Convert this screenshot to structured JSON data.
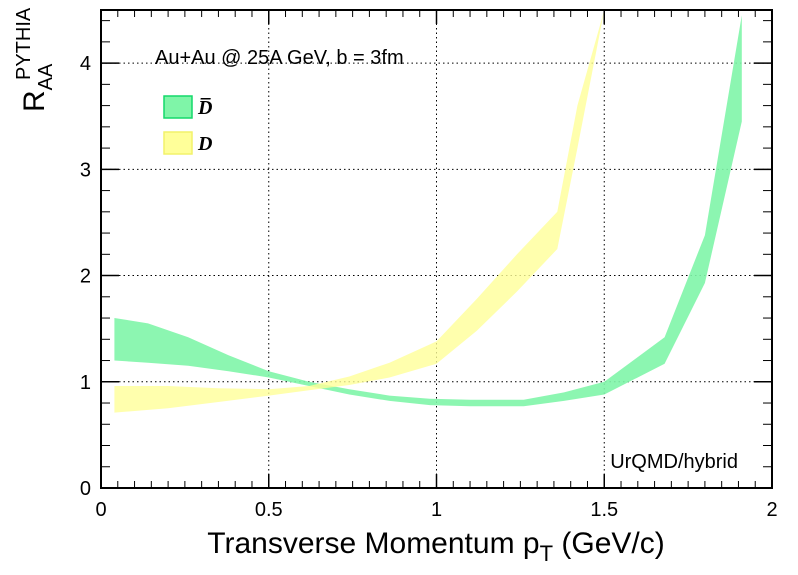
{
  "chart_data": {
    "type": "area",
    "title": "",
    "xlabel": "Transverse Momentum p",
    "xlabel_sub": "T",
    "xlabel_suffix": " (GeV/c)",
    "ylabel": "R",
    "ylabel_sub": "AA",
    "ylabel_sup": "PYTHIA",
    "xlim": [
      0,
      2
    ],
    "ylim": [
      0,
      4.5
    ],
    "x_ticks": [
      0,
      0.5,
      1,
      1.5,
      2
    ],
    "x_tick_labels": [
      "0",
      "0.5",
      "1",
      "1.5",
      "2"
    ],
    "y_ticks": [
      0,
      1,
      2,
      3,
      4
    ],
    "y_tick_labels": [
      "0",
      "1",
      "2",
      "3",
      "4"
    ],
    "grid": true,
    "legend_position": "top-left",
    "annotations": {
      "system": "Au+Au @ 25A GeV, b = 3fm",
      "model": "UrQMD/hybrid"
    },
    "series": [
      {
        "name": "D̅",
        "color_fill": "#7ff5a8",
        "color_edge": "#14d96a",
        "x": [
          0.04,
          0.14,
          0.26,
          0.38,
          0.5,
          0.62,
          0.74,
          0.86,
          0.98,
          1.1,
          1.26,
          1.38,
          1.5,
          1.68,
          1.8,
          1.91
        ],
        "lower": [
          1.2,
          1.18,
          1.15,
          1.1,
          1.04,
          0.96,
          0.88,
          0.82,
          0.78,
          0.77,
          0.77,
          0.82,
          0.88,
          1.17,
          1.93,
          3.45
        ],
        "upper": [
          1.6,
          1.55,
          1.42,
          1.25,
          1.1,
          1.0,
          0.93,
          0.87,
          0.84,
          0.83,
          0.83,
          0.9,
          1.0,
          1.42,
          2.38,
          4.45
        ]
      },
      {
        "name": "D",
        "color_fill": "#ffff99",
        "color_edge": "#f2f26a",
        "x": [
          0.04,
          0.2,
          0.35,
          0.5,
          0.62,
          0.74,
          0.86,
          1.0,
          1.12,
          1.24,
          1.36,
          1.42,
          1.5
        ],
        "lower": [
          0.71,
          0.75,
          0.81,
          0.87,
          0.92,
          0.97,
          1.04,
          1.17,
          1.48,
          1.85,
          2.25,
          3.2,
          4.5
        ],
        "upper": [
          0.96,
          0.96,
          0.94,
          0.93,
          0.96,
          1.05,
          1.18,
          1.38,
          1.78,
          2.2,
          2.6,
          3.6,
          4.5
        ]
      }
    ]
  }
}
